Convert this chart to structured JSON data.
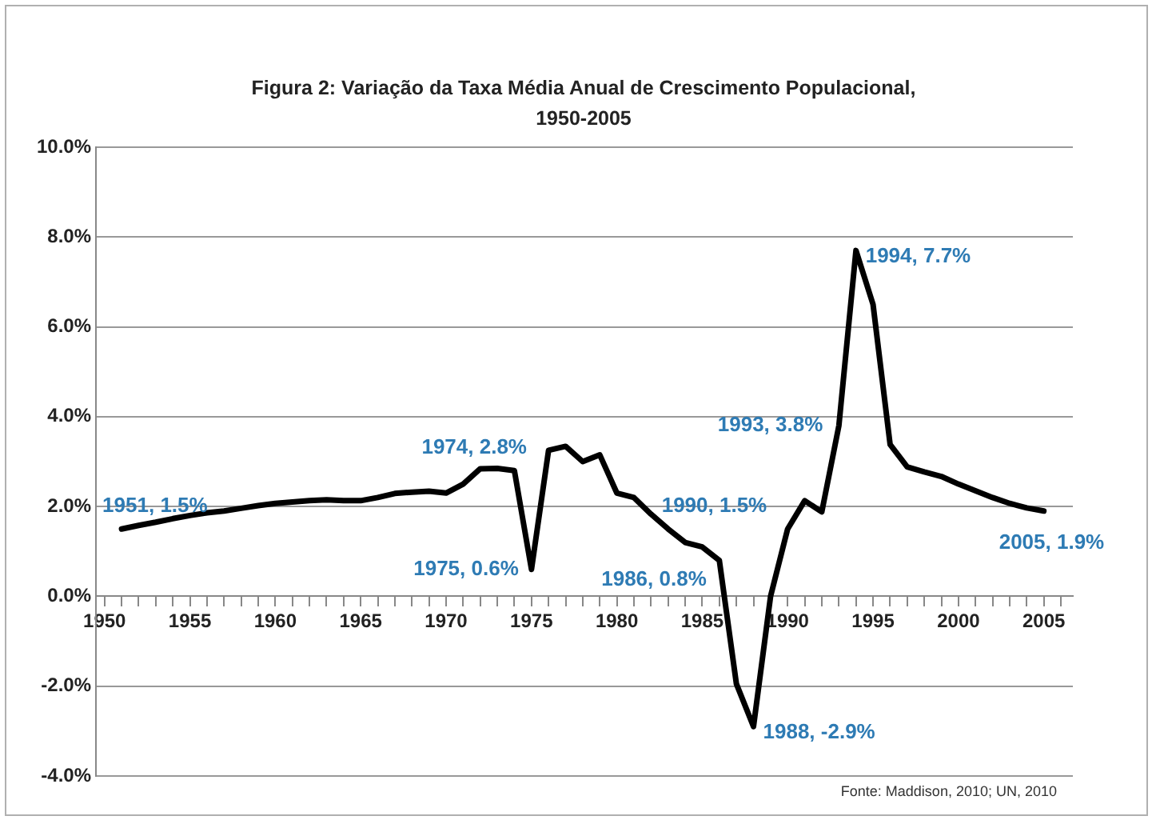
{
  "chart_data": {
    "type": "line",
    "title": "Figura 2: Variação da Taxa Média Anual de Crescimento Populacional, 1950-2005",
    "x": [
      1951,
      1952,
      1953,
      1954,
      1955,
      1956,
      1957,
      1958,
      1959,
      1960,
      1961,
      1962,
      1963,
      1964,
      1965,
      1966,
      1967,
      1968,
      1969,
      1970,
      1971,
      1972,
      1973,
      1974,
      1975,
      1976,
      1977,
      1978,
      1979,
      1980,
      1981,
      1982,
      1983,
      1984,
      1985,
      1986,
      1987,
      1988,
      1989,
      1990,
      1991,
      1992,
      1993,
      1994,
      1995,
      1996,
      1997,
      1998,
      1999,
      2000,
      2001,
      2002,
      2003,
      2004,
      2005
    ],
    "series": [
      {
        "color": "#000000",
        "values": [
          1.5,
          1.58,
          1.65,
          1.73,
          1.8,
          1.86,
          1.9,
          1.96,
          2.02,
          2.07,
          2.1,
          2.13,
          2.15,
          2.13,
          2.13,
          2.2,
          2.29,
          2.32,
          2.34,
          2.3,
          2.5,
          2.84,
          2.85,
          2.8,
          0.6,
          3.25,
          3.34,
          3.0,
          3.15,
          2.3,
          2.2,
          1.83,
          1.5,
          1.2,
          1.1,
          0.8,
          -1.95,
          -2.9,
          0.0,
          1.5,
          2.13,
          1.88,
          3.8,
          7.7,
          6.5,
          3.38,
          2.88,
          2.77,
          2.67,
          2.5,
          2.35,
          2.2,
          2.07,
          1.97,
          1.9
        ]
      }
    ],
    "xlim": [
      1949.5,
      2006.7
    ],
    "xticks": [
      1950,
      {
        "value": 1951,
        "label": null
      },
      {
        "value": 1952,
        "label": null
      },
      {
        "value": 1953,
        "label": null
      },
      {
        "value": 1954,
        "label": null
      },
      1955,
      {
        "value": 1956,
        "label": null
      },
      {
        "value": 1957,
        "label": null
      },
      {
        "value": 1958,
        "label": null
      },
      {
        "value": 1959,
        "label": null
      },
      1960,
      {
        "value": 1961,
        "label": null
      },
      {
        "value": 1962,
        "label": null
      },
      {
        "value": 1963,
        "label": null
      },
      {
        "value": 1964,
        "label": null
      },
      1965,
      {
        "value": 1966,
        "label": null
      },
      {
        "value": 1967,
        "label": null
      },
      {
        "value": 1968,
        "label": null
      },
      {
        "value": 1969,
        "label": null
      },
      1970,
      {
        "value": 1971,
        "label": null
      },
      {
        "value": 1972,
        "label": null
      },
      {
        "value": 1973,
        "label": null
      },
      {
        "value": 1974,
        "label": null
      },
      1975,
      {
        "value": 1976,
        "label": null
      },
      {
        "value": 1977,
        "label": null
      },
      {
        "value": 1978,
        "label": null
      },
      {
        "value": 1979,
        "label": null
      },
      1980,
      {
        "value": 1981,
        "label": null
      },
      {
        "value": 1982,
        "label": null
      },
      {
        "value": 1983,
        "label": null
      },
      {
        "value": 1984,
        "label": null
      },
      1985,
      {
        "value": 1986,
        "label": null
      },
      {
        "value": 1987,
        "label": null
      },
      {
        "value": 1988,
        "label": null
      },
      {
        "value": 1989,
        "label": null
      },
      1990,
      {
        "value": 1991,
        "label": null
      },
      {
        "value": 1992,
        "label": null
      },
      {
        "value": 1993,
        "label": null
      },
      {
        "value": 1994,
        "label": null
      },
      1995,
      {
        "value": 1996,
        "label": null
      },
      {
        "value": 1997,
        "label": null
      },
      {
        "value": 1998,
        "label": null
      },
      {
        "value": 1999,
        "label": null
      },
      2000,
      {
        "value": 2001,
        "label": null
      },
      {
        "value": 2002,
        "label": null
      },
      {
        "value": 2003,
        "label": null
      },
      {
        "value": 2004,
        "label": null
      },
      2005,
      {
        "value": 2006,
        "label": null
      }
    ],
    "ylim": [
      -4,
      10
    ],
    "yticks": [
      {
        "value": -4,
        "label": "-4.0%"
      },
      {
        "value": -2,
        "label": "-2.0%"
      },
      {
        "value": 0,
        "label": "0.0%"
      },
      {
        "value": 2,
        "label": "2.0%"
      },
      {
        "value": 4,
        "label": "4.0%"
      },
      {
        "value": 6,
        "label": "6.0%"
      },
      {
        "value": 8,
        "label": "8.0%"
      },
      {
        "value": 10,
        "label": "10.0%"
      }
    ],
    "grid": "y",
    "legend": false,
    "marker": "none",
    "line_style": "solid",
    "annotations": [
      {
        "text": "1951, 1.5%",
        "x": 1951,
        "y": 1.5
      },
      {
        "text": "1974, 2.8%",
        "x": 1974,
        "y": 2.8
      },
      {
        "text": "1975, 0.6%",
        "x": 1975,
        "y": 0.6
      },
      {
        "text": "1986, 0.8%",
        "x": 1986,
        "y": 0.8
      },
      {
        "text": "1988, -2.9%",
        "x": 1988,
        "y": -2.9
      },
      {
        "text": "1990, 1.5%",
        "x": 1990,
        "y": 1.5
      },
      {
        "text": "1993, 3.8%",
        "x": 1993,
        "y": 3.8
      },
      {
        "text": "1994, 7.7%",
        "x": 1994,
        "y": 7.7
      },
      {
        "text": "2005, 1.9%",
        "x": 2005,
        "y": 1.9
      },
      "Fonte: Maddison, 2010; UN, 2010"
    ]
  }
}
